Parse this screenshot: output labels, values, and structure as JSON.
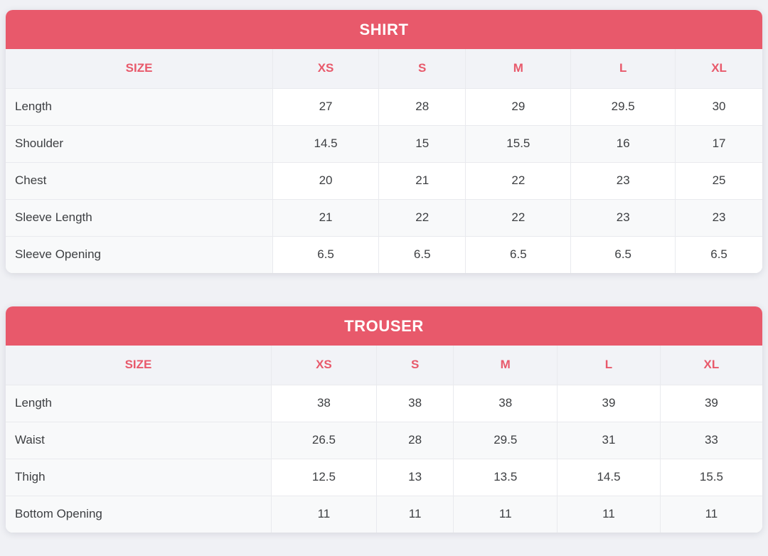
{
  "colors": {
    "accent": "#e8596b",
    "header_row_bg": "#f2f3f7",
    "stripe_bg": "#f8f9fa",
    "border": "#e9eaee",
    "text": "#3d3f42",
    "page_bg": "#f0f1f5",
    "title_text": "#ffffff"
  },
  "tables": [
    {
      "title": "SHIRT",
      "size_header": "SIZE",
      "columns": [
        "XS",
        "S",
        "M",
        "L",
        "XL"
      ],
      "rows": [
        {
          "label": "Length",
          "values": [
            "27",
            "28",
            "29",
            "29.5",
            "30"
          ]
        },
        {
          "label": "Shoulder",
          "values": [
            "14.5",
            "15",
            "15.5",
            "16",
            "17"
          ]
        },
        {
          "label": "Chest",
          "values": [
            "20",
            "21",
            "22",
            "23",
            "25"
          ]
        },
        {
          "label": "Sleeve Length",
          "values": [
            "21",
            "22",
            "22",
            "23",
            "23"
          ]
        },
        {
          "label": "Sleeve Opening",
          "values": [
            "6.5",
            "6.5",
            "6.5",
            "6.5",
            "6.5"
          ]
        }
      ]
    },
    {
      "title": "TROUSER",
      "size_header": "SIZE",
      "columns": [
        "XS",
        "S",
        "M",
        "L",
        "XL"
      ],
      "rows": [
        {
          "label": "Length",
          "values": [
            "38",
            "38",
            "38",
            "39",
            "39"
          ]
        },
        {
          "label": "Waist",
          "values": [
            "26.5",
            "28",
            "29.5",
            "31",
            "33"
          ]
        },
        {
          "label": "Thigh",
          "values": [
            "12.5",
            "13",
            "13.5",
            "14.5",
            "15.5"
          ]
        },
        {
          "label": "Bottom Opening",
          "values": [
            "11",
            "11",
            "11",
            "11",
            "11"
          ]
        }
      ]
    }
  ]
}
